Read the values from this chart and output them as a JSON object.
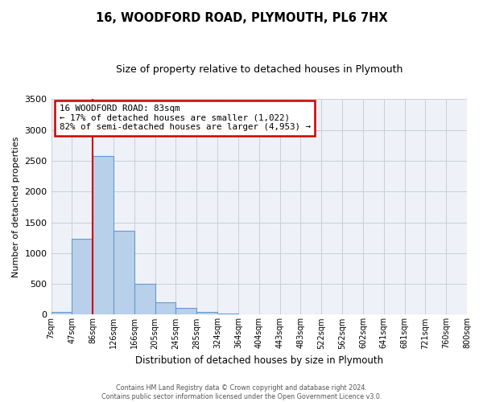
{
  "title": "16, WOODFORD ROAD, PLYMOUTH, PL6 7HX",
  "subtitle": "Size of property relative to detached houses in Plymouth",
  "xlabel": "Distribution of detached houses by size in Plymouth",
  "ylabel": "Number of detached properties",
  "bin_labels": [
    "7sqm",
    "47sqm",
    "86sqm",
    "126sqm",
    "166sqm",
    "205sqm",
    "245sqm",
    "285sqm",
    "324sqm",
    "364sqm",
    "404sqm",
    "443sqm",
    "483sqm",
    "522sqm",
    "562sqm",
    "602sqm",
    "641sqm",
    "681sqm",
    "721sqm",
    "760sqm",
    "800sqm"
  ],
  "bar_heights": [
    50,
    1230,
    2580,
    1360,
    500,
    200,
    110,
    50,
    20,
    5,
    2,
    2,
    2,
    0,
    0,
    0,
    0,
    0,
    0,
    0
  ],
  "bar_color": "#b8d0ea",
  "bar_edge_color": "#6699cc",
  "ylim": [
    0,
    3500
  ],
  "yticks": [
    0,
    500,
    1000,
    1500,
    2000,
    2500,
    3000,
    3500
  ],
  "vline_index": 2,
  "vline_color": "#cc0000",
  "annotation_text": "16 WOODFORD ROAD: 83sqm\n← 17% of detached houses are smaller (1,022)\n82% of semi-detached houses are larger (4,953) →",
  "annotation_box_color": "#ffffff",
  "annotation_border_color": "#cc0000",
  "footer_line1": "Contains HM Land Registry data © Crown copyright and database right 2024.",
  "footer_line2": "Contains public sector information licensed under the Open Government Licence v3.0.",
  "background_color": "#ffffff",
  "plot_bg_color": "#eef2f8",
  "grid_color": "#c8cdd8"
}
